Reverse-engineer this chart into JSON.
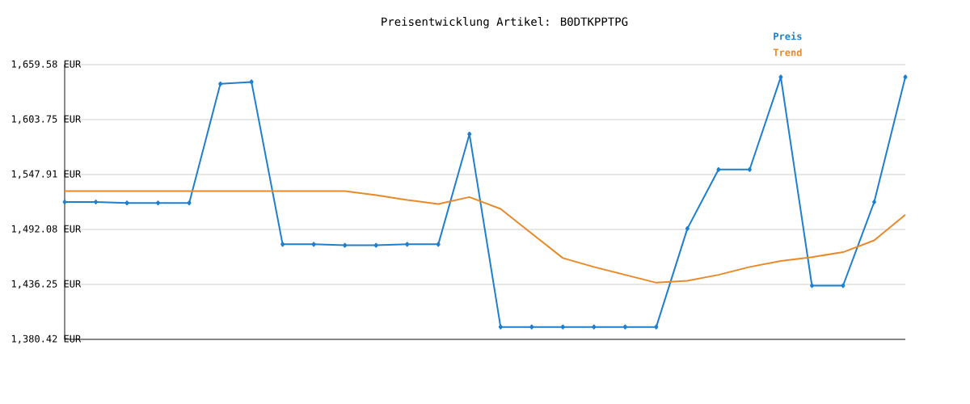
{
  "chart_data": {
    "type": "line",
    "title": "Preisentwicklung Artikel: B0DTKPPTPG",
    "categories": [
      null,
      null,
      null,
      null,
      null,
      null,
      null,
      null,
      null,
      null,
      null,
      null,
      null,
      null,
      null,
      null,
      null,
      null,
      null,
      null,
      null,
      null,
      null,
      null,
      null,
      null,
      null,
      null
    ],
    "series": [
      {
        "name": "Preis",
        "color": "#1f7fcf",
        "marker": "diamond",
        "values": [
          1520,
          1520,
          1519,
          1519,
          1519,
          1640,
          1642,
          1477,
          1477,
          1476,
          1476,
          1477,
          1477,
          1589,
          1393,
          1393,
          1393,
          1393,
          1393,
          1393,
          1493,
          1553,
          1553,
          1647,
          1435,
          1435,
          1520,
          1647
        ]
      },
      {
        "name": "Trend",
        "color": "#e8892a",
        "marker": "none",
        "values": [
          1531,
          1531,
          1531,
          1531,
          1531,
          1531,
          1531,
          1531,
          1531,
          1531,
          1527,
          1522,
          1518,
          1525,
          1513,
          1488,
          1463,
          1454,
          1446,
          1438,
          1440,
          1446,
          1454,
          1460,
          1464,
          1469,
          1481,
          1507
        ]
      }
    ],
    "ylim": [
      1380.42,
      1659.58
    ],
    "yticks": [
      {
        "value": 1380.42,
        "label": "1,380.42 EUR"
      },
      {
        "value": 1436.25,
        "label": "1,436.25 EUR"
      },
      {
        "value": 1492.08,
        "label": "1,492.08 EUR"
      },
      {
        "value": 1547.91,
        "label": "1,547.91 EUR"
      },
      {
        "value": 1603.75,
        "label": "1,603.75 EUR"
      },
      {
        "value": 1659.58,
        "label": "1,659.58 EUR"
      }
    ],
    "grid": "y",
    "legend": "top right",
    "line_style": "solid"
  }
}
